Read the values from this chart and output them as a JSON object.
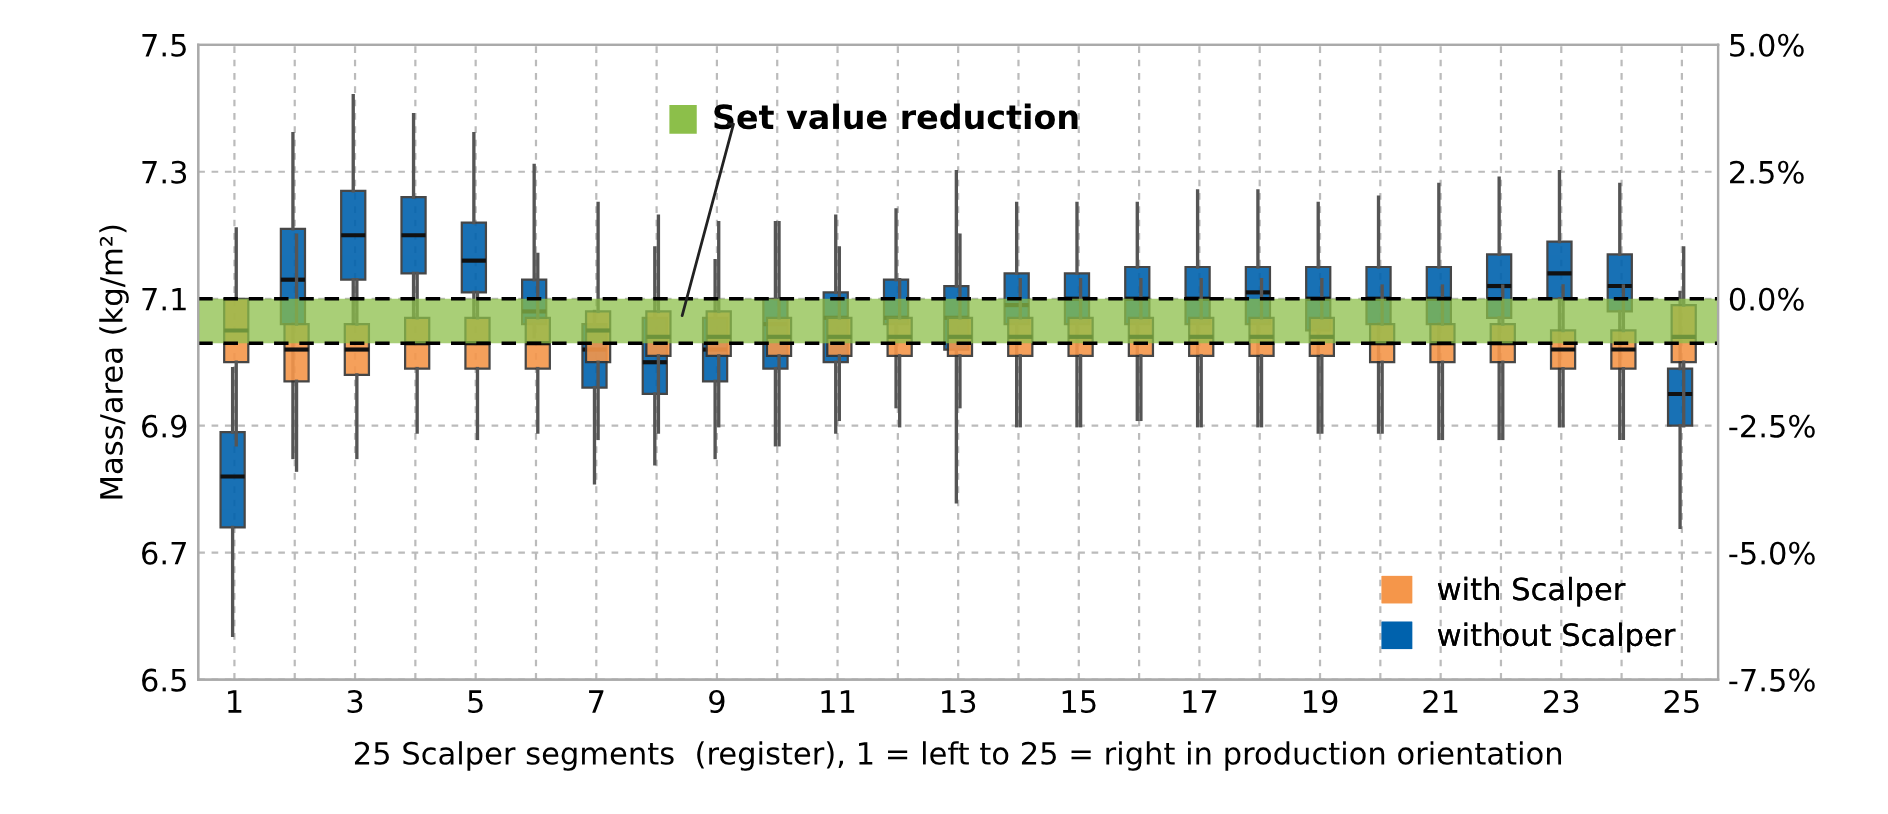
{
  "chart_data": {
    "type": "box",
    "ylabel": "Mass/area (kg/m²)",
    "xlabel": "25 Scalper segments  (register), 1 = left to 25 = right in production orientation",
    "categories": [
      "1",
      null,
      "3",
      null,
      "5",
      null,
      "7",
      null,
      "9",
      null,
      "11",
      null,
      "13",
      null,
      "15",
      null,
      "17",
      null,
      "19",
      null,
      "21",
      null,
      "23",
      null,
      "25"
    ],
    "series": [
      {
        "name": "without Scalper",
        "color": "#0062ad",
        "boxes": [
          {
            "low": 6.57,
            "q1": 6.74,
            "median": 6.82,
            "q3": 6.89,
            "high": 6.99
          },
          {
            "low": 6.85,
            "q1": 7.06,
            "median": 7.13,
            "q3": 7.21,
            "high": 7.36
          },
          {
            "low": 7.06,
            "q1": 7.13,
            "median": 7.2,
            "q3": 7.27,
            "high": 7.42
          },
          {
            "low": 7.07,
            "q1": 7.14,
            "median": 7.2,
            "q3": 7.26,
            "high": 7.39
          },
          {
            "low": 7.07,
            "q1": 7.11,
            "median": 7.16,
            "q3": 7.22,
            "high": 7.36
          },
          {
            "low": 7.04,
            "q1": 7.06,
            "median": 7.08,
            "q3": 7.13,
            "high": 7.31
          },
          {
            "low": 6.81,
            "q1": 6.96,
            "median": 7.02,
            "q3": 7.06,
            "high": 7.08
          },
          {
            "low": 6.84,
            "q1": 6.95,
            "median": 7.0,
            "q3": 7.07,
            "high": 7.18
          },
          {
            "low": 6.85,
            "q1": 6.97,
            "median": 7.02,
            "q3": 7.07,
            "high": 7.16
          },
          {
            "low": 6.87,
            "q1": 6.99,
            "median": 7.06,
            "q3": 7.1,
            "high": 7.22
          },
          {
            "low": 6.89,
            "q1": 7.0,
            "median": 7.07,
            "q3": 7.11,
            "high": 7.23
          },
          {
            "low": 6.93,
            "q1": 7.06,
            "median": 7.07,
            "q3": 7.13,
            "high": 7.24
          },
          {
            "low": 6.78,
            "q1": 7.02,
            "median": 7.07,
            "q3": 7.12,
            "high": 7.3
          },
          {
            "low": 6.9,
            "q1": 7.06,
            "median": 7.09,
            "q3": 7.14,
            "high": 7.25
          },
          {
            "low": 6.9,
            "q1": 7.06,
            "median": 7.1,
            "q3": 7.14,
            "high": 7.25
          },
          {
            "low": 6.91,
            "q1": 7.06,
            "median": 7.1,
            "q3": 7.15,
            "high": 7.25
          },
          {
            "low": 6.9,
            "q1": 7.06,
            "median": 7.1,
            "q3": 7.15,
            "high": 7.27
          },
          {
            "low": 6.9,
            "q1": 7.06,
            "median": 7.11,
            "q3": 7.15,
            "high": 7.27
          },
          {
            "low": 6.89,
            "q1": 7.05,
            "median": 7.1,
            "q3": 7.15,
            "high": 7.25
          },
          {
            "low": 6.89,
            "q1": 7.06,
            "median": 7.1,
            "q3": 7.15,
            "high": 7.26
          },
          {
            "low": 6.88,
            "q1": 7.06,
            "median": 7.1,
            "q3": 7.15,
            "high": 7.28
          },
          {
            "low": 6.88,
            "q1": 7.07,
            "median": 7.12,
            "q3": 7.17,
            "high": 7.29
          },
          {
            "low": 6.9,
            "q1": 7.1,
            "median": 7.14,
            "q3": 7.19,
            "high": 7.3
          },
          {
            "low": 6.88,
            "q1": 7.08,
            "median": 7.12,
            "q3": 7.17,
            "high": 7.28
          },
          {
            "low": 6.74,
            "q1": 6.9,
            "median": 6.95,
            "q3": 6.99,
            "high": 7.11
          }
        ]
      },
      {
        "name": "with Scalper",
        "color": "#f5964a",
        "boxes": [
          {
            "low": 6.87,
            "q1": 7.0,
            "median": 7.05,
            "q3": 7.1,
            "high": 7.21
          },
          {
            "low": 6.83,
            "q1": 6.97,
            "median": 7.02,
            "q3": 7.06,
            "high": 7.2
          },
          {
            "low": 6.85,
            "q1": 6.98,
            "median": 7.02,
            "q3": 7.06,
            "high": 7.13
          },
          {
            "low": 6.89,
            "q1": 6.99,
            "median": 7.03,
            "q3": 7.07,
            "high": 7.14
          },
          {
            "low": 6.88,
            "q1": 6.99,
            "median": 7.03,
            "q3": 7.07,
            "high": 7.11
          },
          {
            "low": 6.89,
            "q1": 6.99,
            "median": 7.03,
            "q3": 7.07,
            "high": 7.17
          },
          {
            "low": 6.88,
            "q1": 7.0,
            "median": 7.05,
            "q3": 7.08,
            "high": 7.25
          },
          {
            "low": 6.89,
            "q1": 7.01,
            "median": 7.04,
            "q3": 7.08,
            "high": 7.23
          },
          {
            "low": 6.9,
            "q1": 7.01,
            "median": 7.04,
            "q3": 7.08,
            "high": 7.22
          },
          {
            "low": 6.87,
            "q1": 7.01,
            "median": 7.04,
            "q3": 7.07,
            "high": 7.22
          },
          {
            "low": 6.91,
            "q1": 7.01,
            "median": 7.04,
            "q3": 7.07,
            "high": 7.18
          },
          {
            "low": 6.9,
            "q1": 7.01,
            "median": 7.04,
            "q3": 7.07,
            "high": 7.13
          },
          {
            "low": 6.93,
            "q1": 7.01,
            "median": 7.04,
            "q3": 7.07,
            "high": 7.2
          },
          {
            "low": 6.9,
            "q1": 7.01,
            "median": 7.04,
            "q3": 7.07,
            "high": 7.13
          },
          {
            "low": 6.9,
            "q1": 7.01,
            "median": 7.04,
            "q3": 7.07,
            "high": 7.13
          },
          {
            "low": 6.91,
            "q1": 7.01,
            "median": 7.04,
            "q3": 7.07,
            "high": 7.13
          },
          {
            "low": 6.9,
            "q1": 7.01,
            "median": 7.04,
            "q3": 7.07,
            "high": 7.13
          },
          {
            "low": 6.9,
            "q1": 7.01,
            "median": 7.04,
            "q3": 7.07,
            "high": 7.13
          },
          {
            "low": 6.89,
            "q1": 7.01,
            "median": 7.04,
            "q3": 7.07,
            "high": 7.13
          },
          {
            "low": 6.89,
            "q1": 7.0,
            "median": 7.03,
            "q3": 7.06,
            "high": 7.12
          },
          {
            "low": 6.88,
            "q1": 7.0,
            "median": 7.03,
            "q3": 7.06,
            "high": 7.12
          },
          {
            "low": 6.88,
            "q1": 7.0,
            "median": 7.03,
            "q3": 7.06,
            "high": 7.12
          },
          {
            "low": 6.9,
            "q1": 6.99,
            "median": 7.02,
            "q3": 7.05,
            "high": 7.12
          },
          {
            "low": 6.88,
            "q1": 6.99,
            "median": 7.02,
            "q3": 7.05,
            "high": 7.12
          },
          {
            "low": 6.9,
            "q1": 7.0,
            "median": 7.04,
            "q3": 7.09,
            "high": 7.18
          }
        ]
      }
    ],
    "ylim": [
      6.5,
      7.5
    ],
    "yticks": [
      6.5,
      6.7,
      6.9,
      7.1,
      7.3,
      7.5
    ],
    "y2lim": [
      -7.5,
      5.0
    ],
    "y2ticks": [
      {
        "value": -7.5,
        "label": "-7.5%"
      },
      {
        "value": -5.0,
        "label": "-5.0%"
      },
      {
        "value": -2.5,
        "label": "-2.5%"
      },
      {
        "value": 0.0,
        "label": "0.0%"
      },
      {
        "value": 2.5,
        "label": "2.5%"
      },
      {
        "value": 5.0,
        "label": "5.0%"
      }
    ],
    "bands": [
      {
        "axis": "y",
        "from": 7.03,
        "to": 7.1,
        "label": "Set value reduction",
        "color": "#8cbf4a"
      }
    ],
    "ref_lines": [
      {
        "axis": "y",
        "value": 7.1,
        "line_style": "dashed",
        "color": "#000000"
      },
      {
        "axis": "y",
        "value": 7.03,
        "line_style": "dashed",
        "color": "#000000"
      }
    ],
    "grid": true,
    "legend": "bottom right"
  }
}
